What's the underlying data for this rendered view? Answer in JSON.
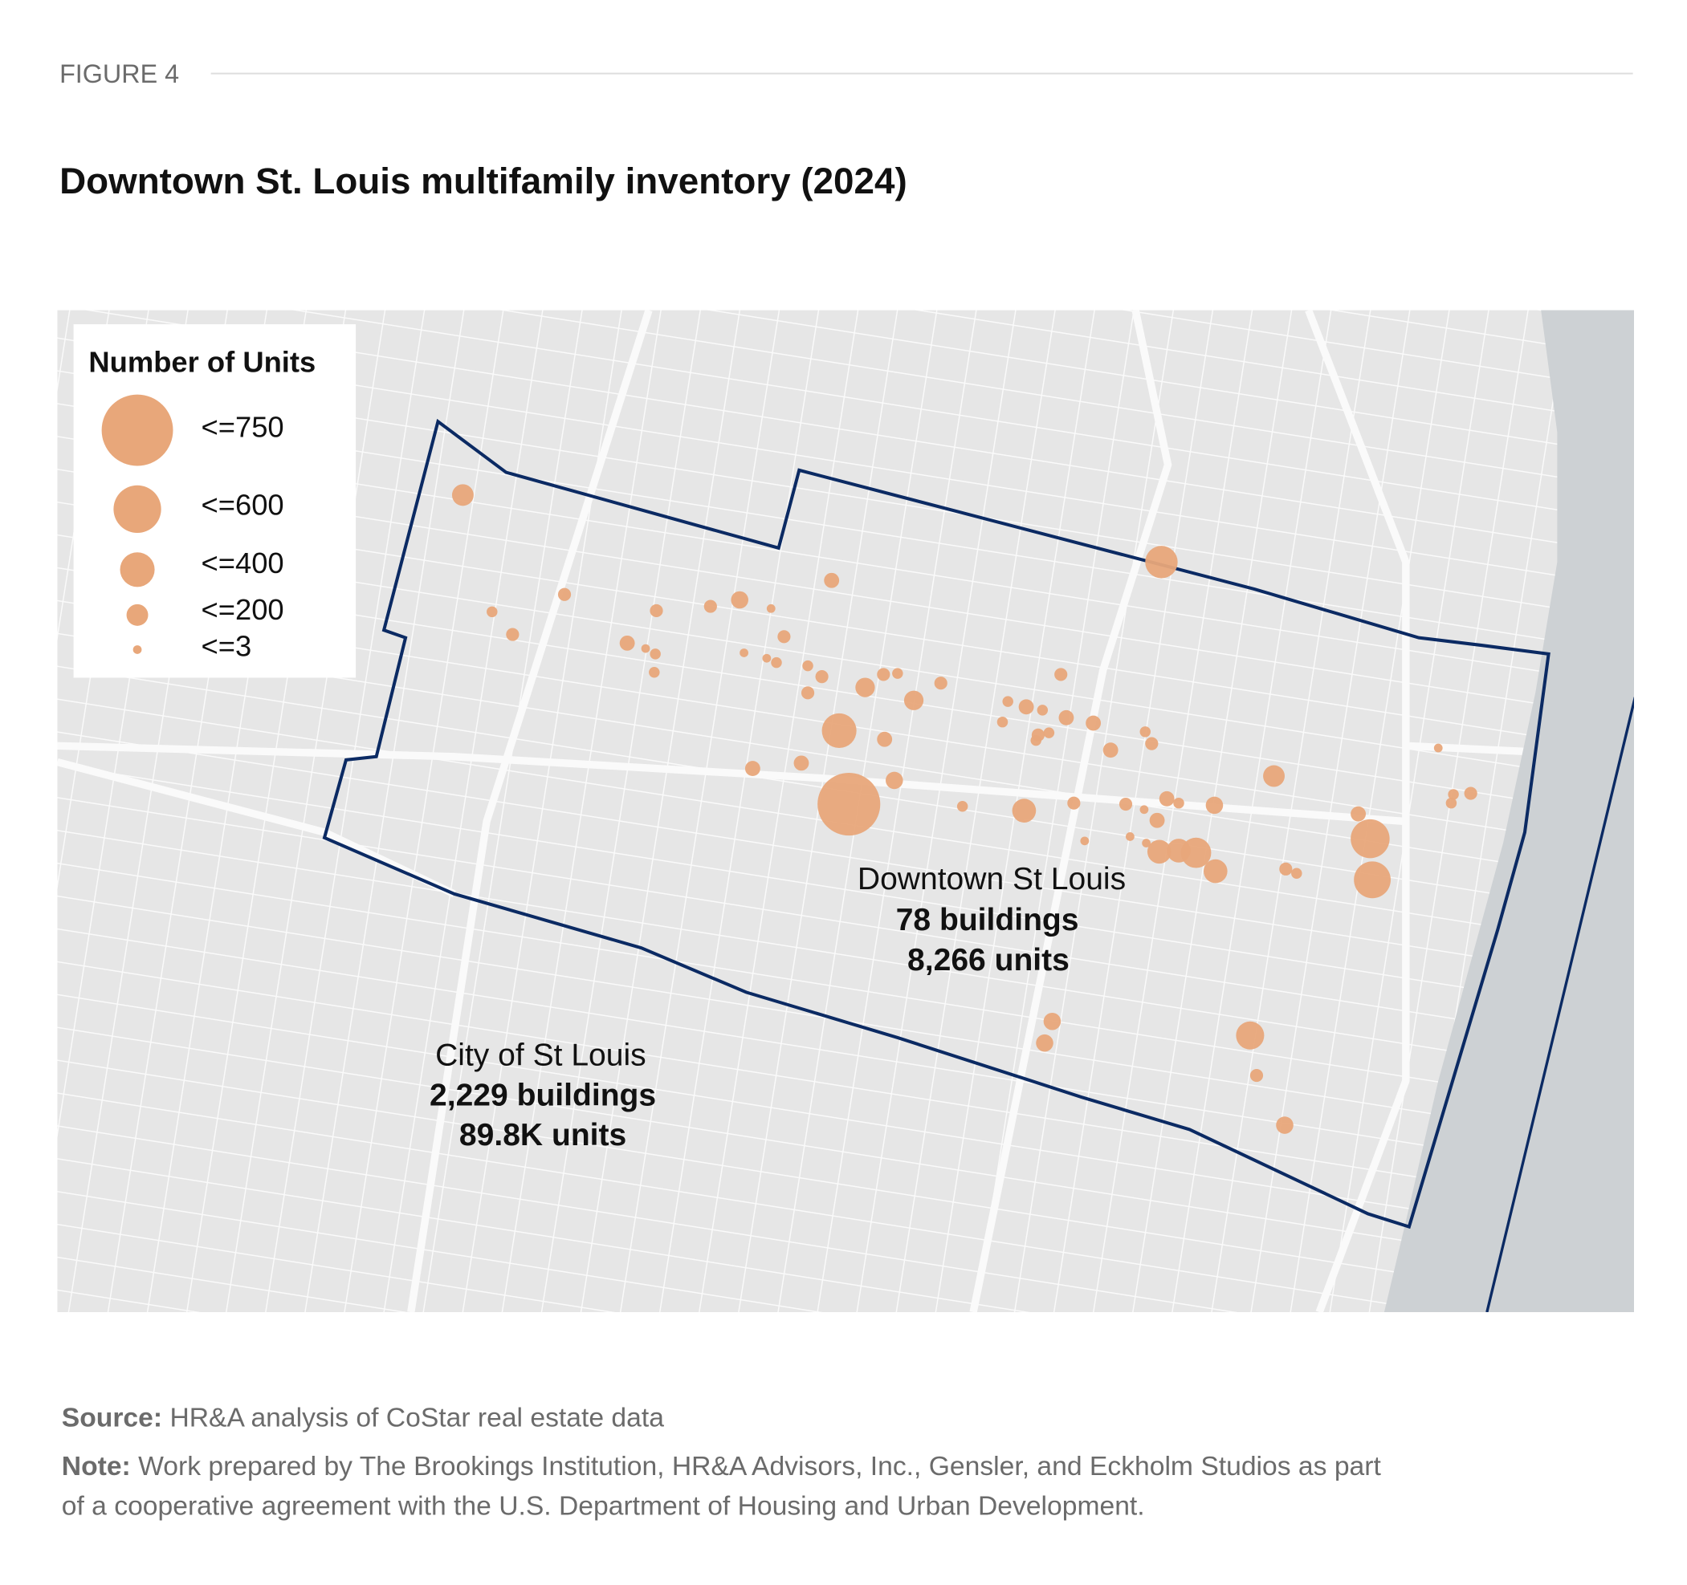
{
  "figure_label": "FIGURE 4",
  "title": "Downtown St. Louis multifamily inventory (2024)",
  "legend": {
    "title": "Number of Units",
    "items": [
      "<=750",
      "<=600",
      "<=400",
      "<=200",
      "<=3"
    ]
  },
  "annotations": {
    "downtown": {
      "name": "Downtown St Louis",
      "buildings": "78 buildings",
      "units": "8,266 units"
    },
    "city": {
      "name": "City of St Louis",
      "buildings": "2,229 buildings",
      "units": "89.8K units"
    }
  },
  "source": {
    "label": "Source:",
    "text": "HR&A analysis of CoStar real estate data"
  },
  "note": {
    "label": "Note:",
    "lines": [
      "Work prepared by The Brookings Institution, HR&A Advisors, Inc., Gensler, and Eckholm Studios as part",
      "of a cooperative agreement with the U.S. Department of Housing and Urban Development."
    ]
  }
}
